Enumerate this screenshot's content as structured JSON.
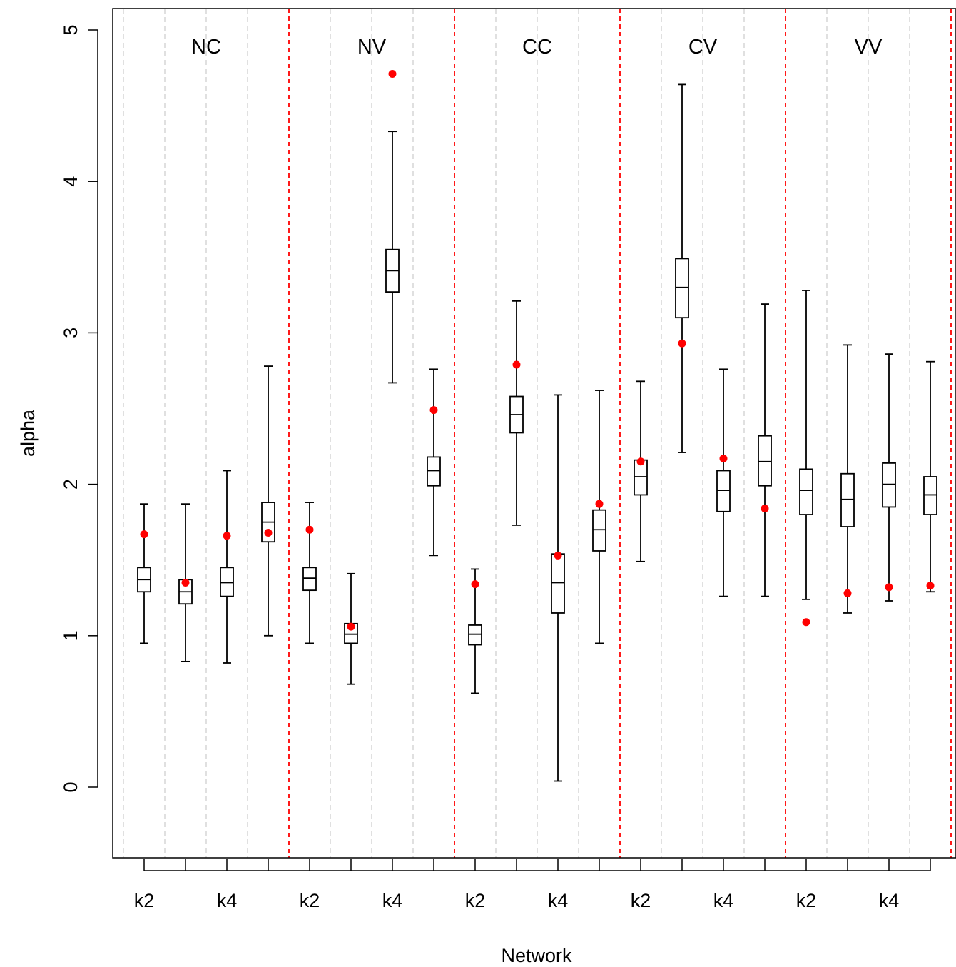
{
  "chart_data": {
    "type": "boxplot",
    "xlabel": "Network",
    "ylabel": "alpha",
    "ylim": [
      -0.45,
      5.15
    ],
    "yticks": [
      0,
      1,
      2,
      3,
      4,
      5
    ],
    "groups": [
      "NC",
      "NV",
      "CC",
      "CV",
      "VV"
    ],
    "x_tick_labels": [
      "k2",
      "",
      "k4",
      "",
      "k2",
      "",
      "k4",
      "",
      "k2",
      "",
      "k4",
      "",
      "k2",
      "",
      "k4",
      "",
      "k2",
      "",
      "k4",
      ""
    ],
    "boxes": [
      {
        "group": "NC",
        "min": 0.95,
        "q1": 1.29,
        "median": 1.37,
        "q3": 1.45,
        "max": 1.87,
        "point": 1.67
      },
      {
        "group": "NC",
        "min": 0.83,
        "q1": 1.21,
        "median": 1.29,
        "q3": 1.37,
        "max": 1.87,
        "point": 1.35
      },
      {
        "group": "NC",
        "min": 0.82,
        "q1": 1.26,
        "median": 1.35,
        "q3": 1.45,
        "max": 2.09,
        "point": 1.66
      },
      {
        "group": "NC",
        "min": 1.0,
        "q1": 1.62,
        "median": 1.75,
        "q3": 1.88,
        "max": 2.78,
        "point": 1.68
      },
      {
        "group": "NV",
        "min": 0.95,
        "q1": 1.3,
        "median": 1.38,
        "q3": 1.45,
        "max": 1.88,
        "point": 1.7
      },
      {
        "group": "NV",
        "min": 0.68,
        "q1": 0.95,
        "median": 1.01,
        "q3": 1.08,
        "max": 1.41,
        "point": 1.06
      },
      {
        "group": "NV",
        "min": 2.67,
        "q1": 3.27,
        "median": 3.41,
        "q3": 3.55,
        "max": 4.33,
        "point": 4.71
      },
      {
        "group": "NV",
        "min": 1.53,
        "q1": 1.99,
        "median": 2.09,
        "q3": 2.18,
        "max": 2.76,
        "point": 2.49
      },
      {
        "group": "CC",
        "min": 0.62,
        "q1": 0.94,
        "median": 1.01,
        "q3": 1.07,
        "max": 1.44,
        "point": 1.34
      },
      {
        "group": "CC",
        "min": 1.73,
        "q1": 2.34,
        "median": 2.46,
        "q3": 2.58,
        "max": 3.21,
        "point": 2.79
      },
      {
        "group": "CC",
        "min": 0.04,
        "q1": 1.15,
        "median": 1.35,
        "q3": 1.54,
        "max": 2.59,
        "point": 1.53
      },
      {
        "group": "CC",
        "min": 0.95,
        "q1": 1.56,
        "median": 1.7,
        "q3": 1.83,
        "max": 2.62,
        "point": 1.87
      },
      {
        "group": "CV",
        "min": 1.49,
        "q1": 1.93,
        "median": 2.05,
        "q3": 2.16,
        "max": 2.68,
        "point": 2.15
      },
      {
        "group": "CV",
        "min": 2.21,
        "q1": 3.1,
        "median": 3.3,
        "q3": 3.49,
        "max": 4.64,
        "point": 2.93
      },
      {
        "group": "CV",
        "min": 1.26,
        "q1": 1.82,
        "median": 1.96,
        "q3": 2.09,
        "max": 2.76,
        "point": 2.17
      },
      {
        "group": "CV",
        "min": 1.26,
        "q1": 1.99,
        "median": 2.15,
        "q3": 2.32,
        "max": 3.19,
        "point": 1.84
      },
      {
        "group": "VV",
        "min": 1.24,
        "q1": 1.8,
        "median": 1.96,
        "q3": 2.1,
        "max": 3.28,
        "point": 1.09
      },
      {
        "group": "VV",
        "min": 1.15,
        "q1": 1.72,
        "median": 1.9,
        "q3": 2.07,
        "max": 2.92,
        "point": 1.28
      },
      {
        "group": "VV",
        "min": 1.23,
        "q1": 1.85,
        "median": 2.0,
        "q3": 2.14,
        "max": 2.86,
        "point": 1.32
      },
      {
        "group": "VV",
        "min": 1.29,
        "q1": 1.8,
        "median": 1.93,
        "q3": 2.05,
        "max": 2.81,
        "point": 1.33
      }
    ],
    "colors": {
      "box": "#000000",
      "point": "#ff0000",
      "group_separator": "#ff0000",
      "minor_gridline": "#d3d3d3"
    },
    "grid": true,
    "legend": "none"
  }
}
